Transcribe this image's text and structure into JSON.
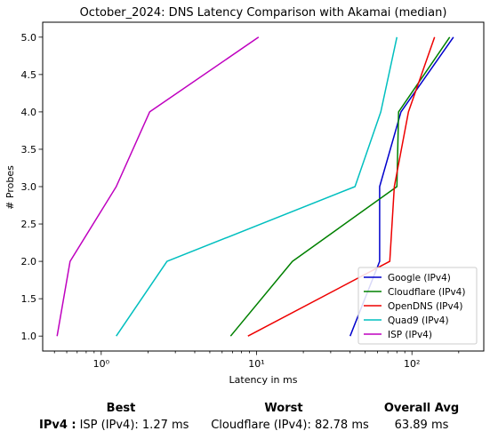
{
  "chart_data": {
    "type": "line",
    "title": "October_2024: DNS Latency Comparison with Akamai (median)",
    "xlabel": "Latency in ms",
    "ylabel": "# Probes",
    "xscale": "log",
    "xlim": [
      0.42,
      290
    ],
    "ylim": [
      0.8,
      5.2
    ],
    "xticks": [
      {
        "value": 1,
        "label": "10⁰"
      },
      {
        "value": 10,
        "label": "10¹"
      },
      {
        "value": 100,
        "label": "10²"
      }
    ],
    "yticks": [
      {
        "value": 1.0,
        "label": "1.0"
      },
      {
        "value": 1.5,
        "label": "1.5"
      },
      {
        "value": 2.0,
        "label": "2.0"
      },
      {
        "value": 2.5,
        "label": "2.5"
      },
      {
        "value": 3.0,
        "label": "3.0"
      },
      {
        "value": 3.5,
        "label": "3.5"
      },
      {
        "value": 4.0,
        "label": "4.0"
      },
      {
        "value": 4.5,
        "label": "4.5"
      },
      {
        "value": 5.0,
        "label": "5.0"
      }
    ],
    "grid": false,
    "legend_position": "lower-right",
    "series": [
      {
        "name": "Google (IPv4)",
        "color": "#0000cc",
        "points": [
          [
            40,
            1
          ],
          [
            62,
            2
          ],
          [
            62,
            3
          ],
          [
            85,
            4
          ],
          [
            185,
            5
          ]
        ]
      },
      {
        "name": "Cloudflare (IPv4)",
        "color": "#008000",
        "points": [
          [
            6.8,
            1
          ],
          [
            17,
            2
          ],
          [
            80,
            3
          ],
          [
            82,
            4
          ],
          [
            175,
            5
          ]
        ]
      },
      {
        "name": "OpenDNS (IPv4)",
        "color": "#ee0000",
        "points": [
          [
            8.8,
            1
          ],
          [
            72,
            2
          ],
          [
            77,
            3
          ],
          [
            95,
            4
          ],
          [
            140,
            5
          ]
        ]
      },
      {
        "name": "Quad9 (IPv4)",
        "color": "#00bfbf",
        "points": [
          [
            1.25,
            1
          ],
          [
            2.65,
            2
          ],
          [
            43,
            3
          ],
          [
            63,
            4
          ],
          [
            80,
            5
          ]
        ]
      },
      {
        "name": "ISP (IPv4)",
        "color": "#bf00bf",
        "points": [
          [
            0.52,
            1
          ],
          [
            0.63,
            2
          ],
          [
            1.25,
            3
          ],
          [
            2.05,
            4
          ],
          [
            10.3,
            5
          ]
        ]
      }
    ]
  },
  "summary": {
    "row_label": "IPv4 :",
    "best_header": "Best",
    "worst_header": "Worst",
    "avg_header": "Overall Avg",
    "best_value": "ISP (IPv4): 1.27 ms",
    "worst_value": "Cloudflare (IPv4): 82.78 ms",
    "avg_value": "63.89 ms"
  }
}
